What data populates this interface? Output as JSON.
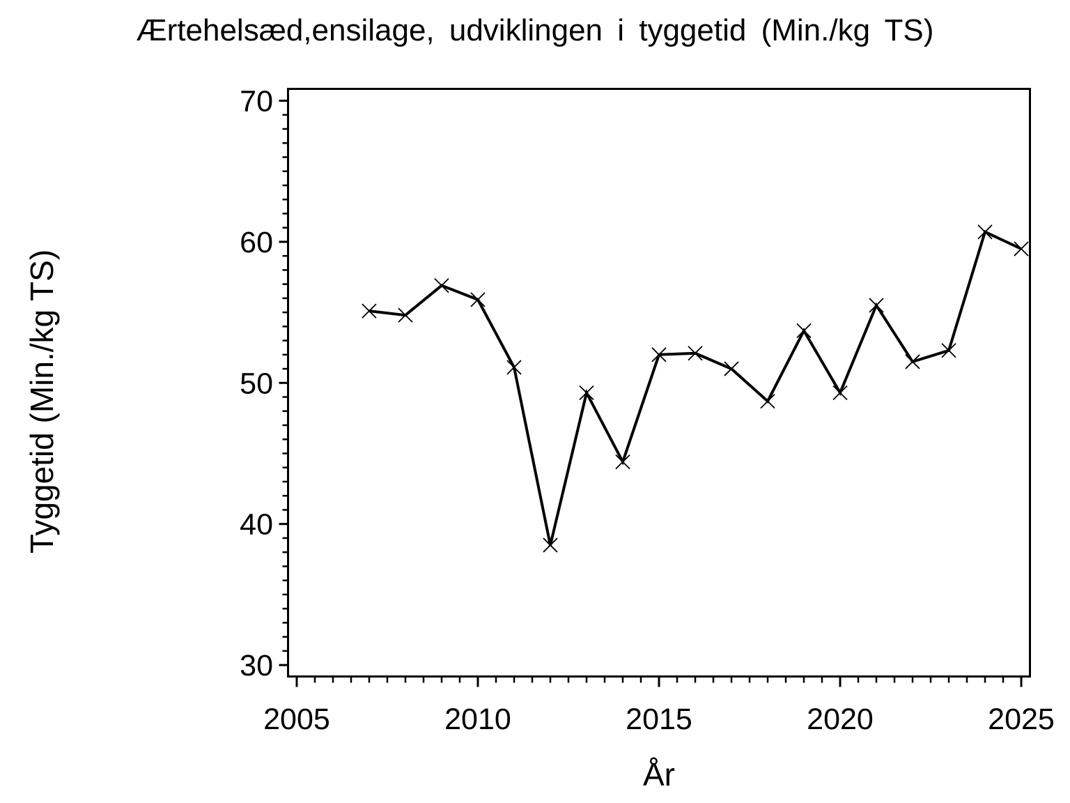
{
  "chart_data": {
    "type": "line",
    "title": "Ærtehelsæd,ensilage, udviklingen i tyggetid (Min./kg TS)",
    "xlabel": "År",
    "ylabel": "Tyggetid (Min./kg TS)",
    "series": [
      {
        "name": "Tyggetid",
        "x": [
          2007,
          2008,
          2009,
          2010,
          2011,
          2012,
          2013,
          2014,
          2015,
          2016,
          2017,
          2018,
          2019,
          2020,
          2021,
          2022,
          2023,
          2024,
          2025
        ],
        "values": [
          55.1,
          54.8,
          56.9,
          55.9,
          51.1,
          38.5,
          49.3,
          44.4,
          52.0,
          52.1,
          51.0,
          48.7,
          53.7,
          49.3,
          55.5,
          51.5,
          52.3,
          60.7,
          59.5
        ],
        "marker": "x",
        "color": "#000000"
      }
    ],
    "x_axis": {
      "range": [
        2004.76,
        2025.24
      ],
      "major_ticks": [
        2005,
        2010,
        2015,
        2020,
        2025
      ],
      "major_tick_labels": [
        "2005",
        "2010",
        "2015",
        "2020",
        "2025"
      ],
      "minor_tick_step": 0.5
    },
    "y_axis": {
      "range": [
        29.19,
        70.84
      ],
      "major_ticks": [
        30,
        40,
        50,
        60,
        70
      ],
      "major_tick_labels": [
        "30",
        "40",
        "50",
        "60",
        "70"
      ],
      "minor_tick_step": 1
    },
    "grid": false,
    "legend": null,
    "frame": "box",
    "background_color": "#ffffff",
    "foreground_color": "#000000"
  }
}
